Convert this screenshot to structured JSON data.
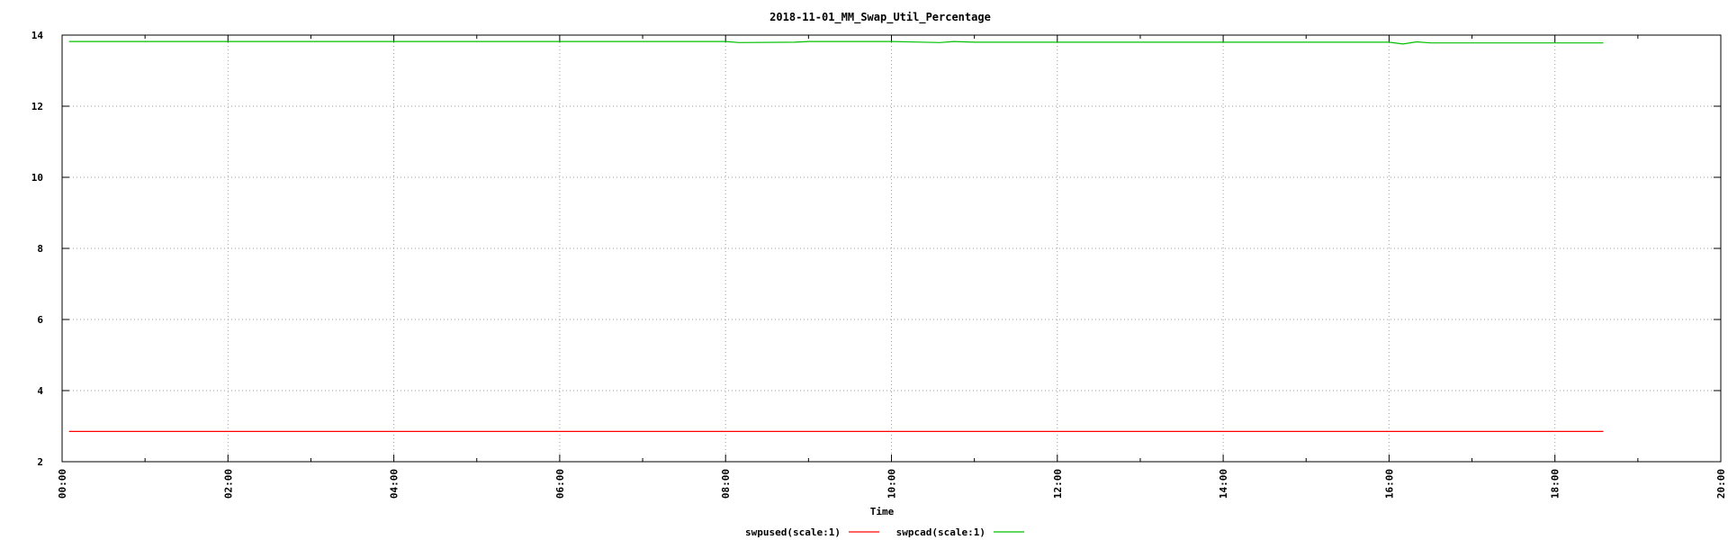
{
  "chart_data": {
    "type": "line",
    "title": "2018-11-01_MM_Swap_Util_Percentage",
    "xlabel": "Time",
    "ylabel": "",
    "xlim": [
      "00:00",
      "20:00"
    ],
    "ylim": [
      2,
      14
    ],
    "grid": true,
    "legend_position": "bottom-center",
    "x_ticks": [
      "00:00",
      "02:00",
      "04:00",
      "06:00",
      "08:00",
      "10:00",
      "12:00",
      "14:00",
      "16:00",
      "18:00",
      "20:00"
    ],
    "y_ticks": [
      "2",
      "4",
      "6",
      "8",
      "10",
      "12",
      "14"
    ],
    "series": [
      {
        "name": "swpused(scale:1)",
        "color": "#ff0000",
        "x": [
          "00:05",
          "02:00",
          "04:00",
          "06:00",
          "08:00",
          "10:00",
          "12:00",
          "14:00",
          "16:00",
          "18:00",
          "18:35"
        ],
        "y": [
          2.85,
          2.85,
          2.85,
          2.85,
          2.85,
          2.85,
          2.85,
          2.85,
          2.85,
          2.85,
          2.85
        ]
      },
      {
        "name": "swpcad(scale:1)",
        "color": "#00c000",
        "x": [
          "00:05",
          "02:00",
          "04:00",
          "06:00",
          "08:00",
          "08:10",
          "08:50",
          "09:00",
          "10:00",
          "10:35",
          "10:45",
          "11:00",
          "12:00",
          "14:00",
          "16:00",
          "16:10",
          "16:20",
          "16:30",
          "18:00",
          "18:35"
        ],
        "y": [
          13.82,
          13.82,
          13.82,
          13.82,
          13.82,
          13.79,
          13.8,
          13.82,
          13.82,
          13.79,
          13.82,
          13.8,
          13.8,
          13.8,
          13.8,
          13.75,
          13.81,
          13.78,
          13.78,
          13.78
        ]
      }
    ]
  }
}
